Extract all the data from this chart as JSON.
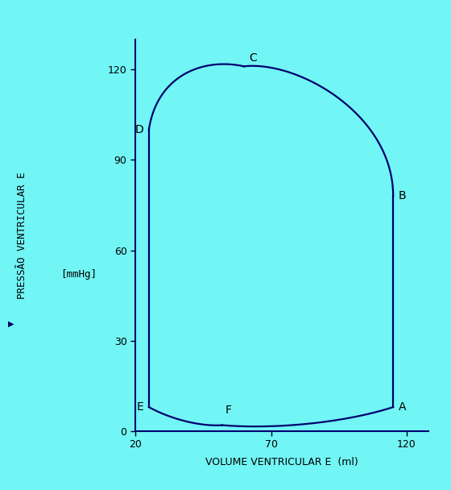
{
  "background_color": "#72f5f5",
  "curve_color": "#00006e",
  "axis_color": "#00006e",
  "tick_color": "#000000",
  "label_color": "#000000",
  "xlim": [
    20,
    128
  ],
  "ylim": [
    0,
    130
  ],
  "xticks": [
    20,
    70,
    120
  ],
  "yticks": [
    0,
    30,
    60,
    90,
    120
  ],
  "xlabel": "VOLUME VENTRICULAR E  (ml)",
  "ylabel": "PRESSÃO VENTRICULAR E",
  "ylabel2": "[mmHg]",
  "points": {
    "A": [
      115,
      8
    ],
    "B": [
      115,
      78
    ],
    "C": [
      60,
      121
    ],
    "D": [
      25,
      100
    ],
    "E": [
      25,
      8
    ],
    "F": [
      52,
      2
    ]
  },
  "figsize": [
    5.6,
    6.08
  ],
  "dpi": 100,
  "linewidth": 1.6,
  "fontsize_labels": 9,
  "fontsize_axis_label": 9,
  "fontsize_points": 10
}
